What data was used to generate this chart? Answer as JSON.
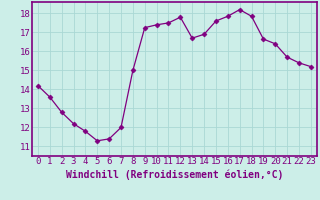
{
  "x": [
    0,
    1,
    2,
    3,
    4,
    5,
    6,
    7,
    8,
    9,
    10,
    11,
    12,
    13,
    14,
    15,
    16,
    17,
    18,
    19,
    20,
    21,
    22,
    23
  ],
  "y": [
    14.2,
    13.6,
    12.8,
    12.2,
    11.8,
    11.3,
    11.4,
    12.0,
    15.0,
    17.25,
    17.4,
    17.5,
    17.8,
    16.7,
    16.9,
    17.6,
    17.85,
    18.2,
    17.85,
    16.65,
    16.4,
    15.7,
    15.4,
    15.2
  ],
  "line_color": "#800080",
  "marker": "D",
  "marker_size": 2.5,
  "bg_color": "#cceee8",
  "grid_color": "#aad8d4",
  "xlabel": "Windchill (Refroidissement éolien,°C)",
  "xlabel_color": "#800080",
  "tick_color": "#800080",
  "ylim": [
    10.5,
    18.6
  ],
  "xlim": [
    -0.5,
    23.5
  ],
  "yticks": [
    11,
    12,
    13,
    14,
    15,
    16,
    17,
    18
  ],
  "xticks": [
    0,
    1,
    2,
    3,
    4,
    5,
    6,
    7,
    8,
    9,
    10,
    11,
    12,
    13,
    14,
    15,
    16,
    17,
    18,
    19,
    20,
    21,
    22,
    23
  ],
  "spine_color": "#800080",
  "tick_fontsize": 6.5,
  "xlabel_fontsize": 7.0
}
